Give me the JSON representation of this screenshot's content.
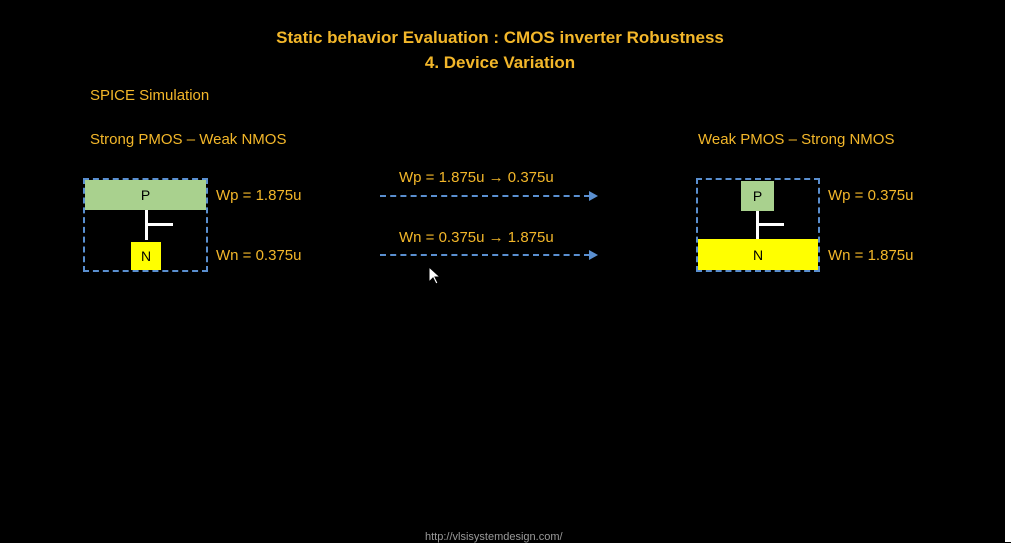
{
  "title": {
    "line1": "Static behavior Evaluation : CMOS inverter Robustness",
    "line2": "4. Device Variation"
  },
  "subtitle": "SPICE Simulation",
  "left": {
    "heading": "Strong PMOS – Weak NMOS",
    "p_label": "P",
    "n_label": "N",
    "wp": "Wp = 1.875u",
    "wn": "Wn = 0.375u"
  },
  "right": {
    "heading": "Weak PMOS – Strong NMOS",
    "p_label": "P",
    "n_label": "N",
    "wp": "Wp = 0.375u",
    "wn": "Wn = 1.875u"
  },
  "transitions": {
    "wp": "Wp = 1.875u → 0.375u",
    "wn": "Wn = 0.375u → 1.875u"
  },
  "footer": "http://vlsisystemdesign.com/",
  "colors": {
    "text": "#f3b72a",
    "pmos": "#a9d18e",
    "nmos": "#ffff00",
    "dash": "#5a8fd0"
  }
}
